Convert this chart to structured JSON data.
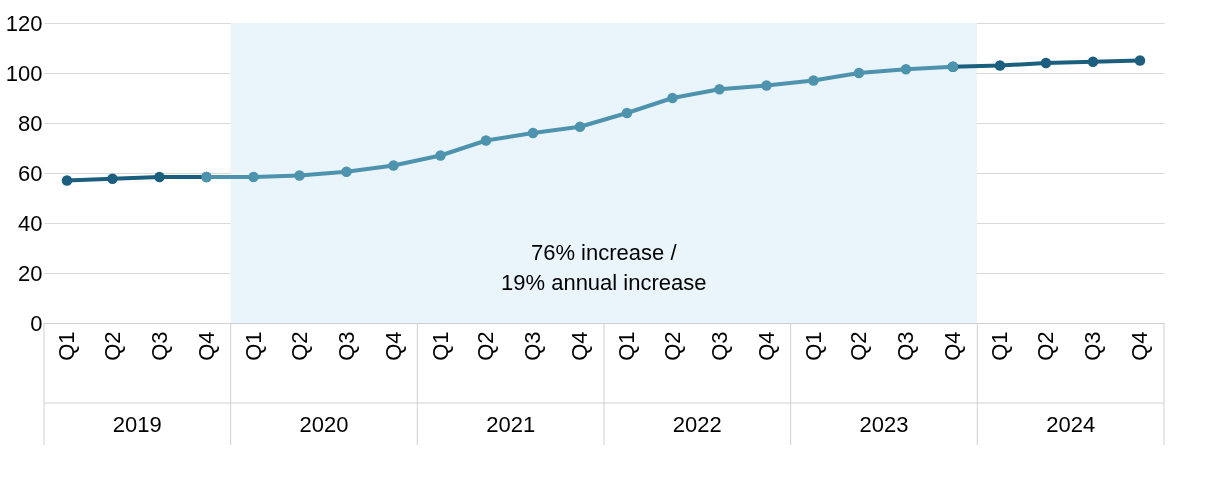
{
  "chart_data": {
    "type": "line",
    "x": [
      "2019-02-15",
      "2019-05-15",
      "2019-08-15",
      "2019-11-15",
      "2020-02-15",
      "2020-05-15",
      "2020-08-15",
      "2020-11-15",
      "2021-02-15",
      "2021-05-15",
      "2021-08-15",
      "2021-11-15",
      "2022-02-15",
      "2022-05-15",
      "2022-08-15",
      "2022-11-15",
      "2023-02-15",
      "2023-05-15",
      "2023-08-15",
      "2023-11-15",
      "2024-02-15",
      "2024-05-15",
      "2024-08-15",
      "2024-11-15"
    ],
    "xlim": [
      "2019-01-01",
      "2025-01-01"
    ],
    "xticks": [
      {
        "value": "2019-02-15",
        "label": "Q1"
      },
      {
        "value": "2019-05-15",
        "label": "Q2"
      },
      {
        "value": "2019-08-15",
        "label": "Q3"
      },
      {
        "value": "2019-11-15",
        "label": "Q4"
      },
      {
        "value": "2020-02-15",
        "label": "Q1"
      },
      {
        "value": "2020-05-15",
        "label": "Q2"
      },
      {
        "value": "2020-08-15",
        "label": "Q3"
      },
      {
        "value": "2020-11-15",
        "label": "Q4"
      },
      {
        "value": "2021-02-15",
        "label": "Q1"
      },
      {
        "value": "2021-05-15",
        "label": "Q2"
      },
      {
        "value": "2021-08-15",
        "label": "Q3"
      },
      {
        "value": "2021-11-15",
        "label": "Q4"
      },
      {
        "value": "2022-02-15",
        "label": "Q1"
      },
      {
        "value": "2022-05-15",
        "label": "Q2"
      },
      {
        "value": "2022-08-15",
        "label": "Q3"
      },
      {
        "value": "2022-11-15",
        "label": "Q4"
      },
      {
        "value": "2023-02-15",
        "label": "Q1"
      },
      {
        "value": "2023-05-15",
        "label": "Q2"
      },
      {
        "value": "2023-08-15",
        "label": "Q3"
      },
      {
        "value": "2023-11-15",
        "label": "Q4"
      },
      {
        "value": "2024-02-15",
        "label": "Q1"
      },
      {
        "value": "2024-05-15",
        "label": "Q2"
      },
      {
        "value": "2024-08-15",
        "label": "Q3"
      },
      {
        "value": "2024-11-15",
        "label": "Q4"
      }
    ],
    "series": [
      {
        "color": "#1b5e7e",
        "values": [
          57,
          57.7,
          58.4,
          58.4,
          null,
          null,
          null,
          null,
          null,
          null,
          null,
          null,
          null,
          null,
          null,
          null,
          null,
          null,
          null,
          102.5,
          103,
          104,
          104.5,
          105
        ]
      },
      {
        "color": "#4e93ae",
        "values": [
          null,
          null,
          null,
          58.4,
          58.4,
          59,
          60.5,
          63,
          67,
          73,
          76,
          78.5,
          84,
          90,
          93.5,
          95,
          97,
          100,
          101.5,
          102.5,
          null,
          null,
          null,
          null
        ]
      }
    ],
    "ylim": [
      0,
      120
    ],
    "yticks": [
      0,
      20,
      40,
      60,
      80,
      100,
      120
    ],
    "grid": "y",
    "marker": "circle",
    "line_style": "solid",
    "annotations": [
      "2019",
      "2020",
      "2021",
      "2022",
      "2023",
      "2024"
    ],
    "bands": [
      {
        "axis": "x",
        "from": "2020-01-01",
        "to": "2024-01-01",
        "label": "76% increase /\n19% annual increase",
        "color": "#eaf5fb"
      }
    ]
  }
}
